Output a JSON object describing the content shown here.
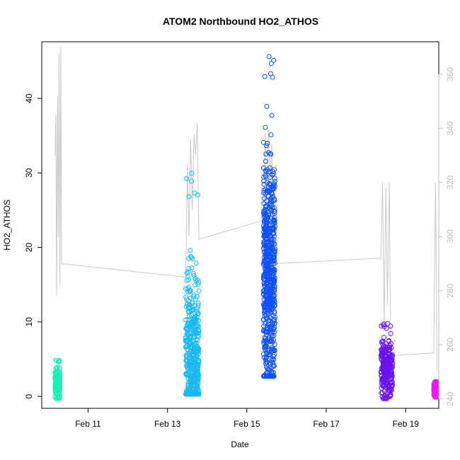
{
  "chart_data": {
    "type": "scatter",
    "title": "ATOM2 Northbound HO2_ATHOS",
    "xlabel": "Date",
    "ylabel": "HO2_ATHOS",
    "xlim": [
      "2016-02-09T20:00",
      "2016-02-19T20:00"
    ],
    "ylim": [
      -1.6,
      47.6
    ],
    "y2lim": [
      236.5,
      372
    ],
    "x_ticks": [
      {
        "date": "2016-02-11T00:00",
        "label": "Feb 11"
      },
      {
        "date": "2016-02-13T00:00",
        "label": "Feb 13"
      },
      {
        "date": "2016-02-15T00:00",
        "label": "Feb 15"
      },
      {
        "date": "2016-02-17T00:00",
        "label": "Feb 17"
      },
      {
        "date": "2016-02-19T00:00",
        "label": "Feb 19"
      }
    ],
    "y_ticks": [
      0,
      10,
      20,
      30,
      40
    ],
    "y2_ticks": [
      240,
      260,
      280,
      300,
      320,
      340,
      360
    ],
    "grid": false,
    "scatter_clusters": [
      {
        "color": "#1bf0b4",
        "start": "2016-02-10T04:00",
        "end": "2016-02-10T07:00",
        "ymin": -0.3,
        "ymax": 5.0,
        "center": 1.8,
        "spread": 0.9
      },
      {
        "color": "#19b8f0",
        "start": "2016-02-13T11:00",
        "end": "2016-02-13T19:00",
        "ymin": 0.3,
        "ymax": 30.3,
        "center": 5.0,
        "spread": 5.5
      },
      {
        "color": "#1050f5",
        "start": "2016-02-15T10:00",
        "end": "2016-02-15T17:00",
        "ymin": 2.7,
        "ymax": 46.5,
        "center": 17.0,
        "spread": 7.5
      },
      {
        "color": "#6a10f0",
        "start": "2016-02-18T09:00",
        "end": "2016-02-18T16:00",
        "ymin": -0.3,
        "ymax": 9.8,
        "center": 3.5,
        "spread": 2.0
      },
      {
        "color": "#e81be8",
        "start": "2016-02-19T17:00",
        "end": "2016-02-19T19:00",
        "ymin": -0.1,
        "ymax": 2.0,
        "center": 1.0,
        "spread": 0.5
      }
    ],
    "secondary_line": {
      "color": "#c8c8c8",
      "points": [
        [
          "2016-02-10T04:00",
          330
        ],
        [
          "2016-02-10T04:30",
          345
        ],
        [
          "2016-02-10T05:00",
          278
        ],
        [
          "2016-02-10T05:30",
          352
        ],
        [
          "2016-02-10T06:00",
          300
        ],
        [
          "2016-02-10T06:30",
          368
        ],
        [
          "2016-02-10T07:00",
          282
        ],
        [
          "2016-02-10T07:30",
          370
        ],
        [
          "2016-02-10T08:00",
          290
        ],
        [
          "2016-02-13T11:00",
          285
        ],
        [
          "2016-02-13T12:00",
          327
        ],
        [
          "2016-02-13T13:00",
          300
        ],
        [
          "2016-02-13T14:00",
          336
        ],
        [
          "2016-02-13T15:00",
          310
        ],
        [
          "2016-02-13T16:00",
          338
        ],
        [
          "2016-02-13T17:00",
          330
        ],
        [
          "2016-02-13T18:00",
          342
        ],
        [
          "2016-02-13T19:00",
          299
        ],
        [
          "2016-02-15T10:00",
          306
        ],
        [
          "2016-02-15T11:00",
          338
        ],
        [
          "2016-02-15T12:00",
          312
        ],
        [
          "2016-02-15T13:00",
          340
        ],
        [
          "2016-02-15T14:00",
          320
        ],
        [
          "2016-02-15T15:00",
          334
        ],
        [
          "2016-02-15T16:00",
          300
        ],
        [
          "2016-02-15T17:00",
          290
        ],
        [
          "2016-02-18T09:00",
          292
        ],
        [
          "2016-02-18T10:00",
          320
        ],
        [
          "2016-02-18T11:00",
          268
        ],
        [
          "2016-02-18T12:00",
          318
        ],
        [
          "2016-02-18T13:00",
          275
        ],
        [
          "2016-02-18T14:00",
          320
        ],
        [
          "2016-02-18T15:00",
          258
        ],
        [
          "2016-02-18T16:00",
          256
        ],
        [
          "2016-02-19T17:00",
          257
        ],
        [
          "2016-02-19T18:00",
          320
        ],
        [
          "2016-02-19T19:00",
          250
        ]
      ]
    }
  }
}
